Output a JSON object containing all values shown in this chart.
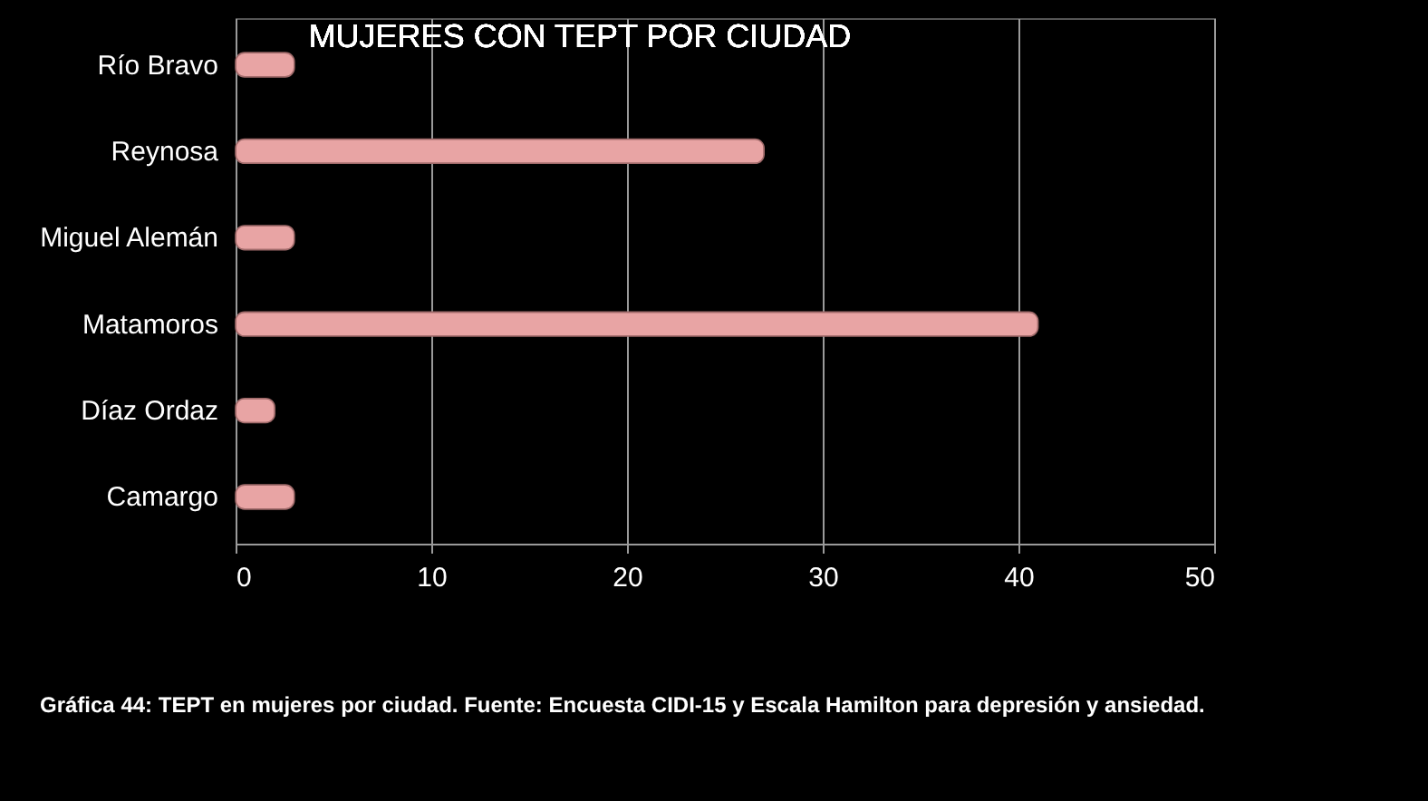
{
  "chart_data": {
    "type": "bar",
    "orientation": "horizontal",
    "title": "MUJERES CON TEPT POR CIUDAD",
    "categories": [
      "Río Bravo",
      "Reynosa",
      "Miguel Alemán",
      "Matamoros",
      "Díaz Ordaz",
      "Camargo"
    ],
    "values": [
      3,
      27,
      3,
      41,
      2,
      3
    ],
    "color": "#e8a4a4",
    "xlim": [
      0,
      50
    ],
    "xticks": [
      0,
      10,
      20,
      30,
      40,
      50
    ],
    "grid": "x",
    "annotations": [
      "Gráfica 44:  TEPT en mujeres por ciudad. Fuente: Encuesta CIDI-15 y Escala Hamilton para depresión y ansiedad."
    ]
  }
}
